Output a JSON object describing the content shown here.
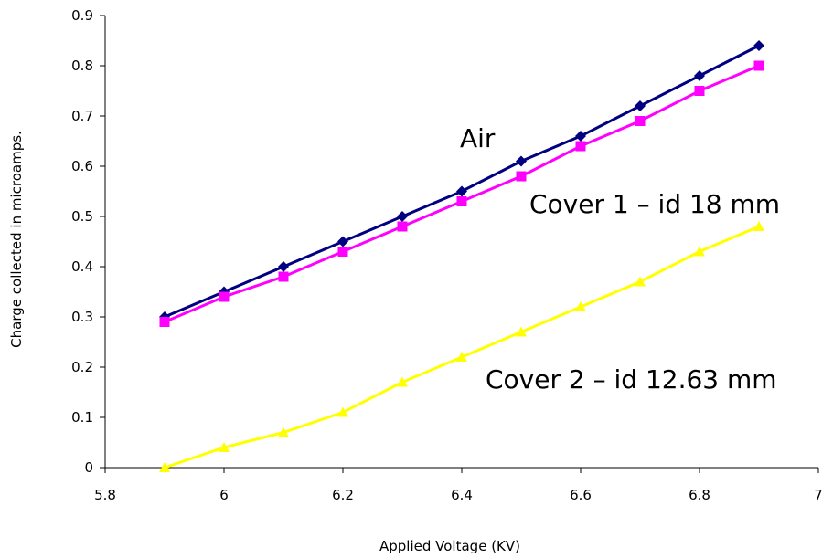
{
  "chart_data": {
    "type": "line",
    "xlabel": "Applied Voltage (KV)",
    "ylabel": "Charge collected in microamps.",
    "xlim": [
      5.8,
      7
    ],
    "ylim": [
      0,
      0.9
    ],
    "x_ticks": [
      "5.8",
      "6",
      "6.2",
      "6.4",
      "6.6",
      "6.8",
      "7"
    ],
    "y_ticks": [
      "0",
      "0.1",
      "0.2",
      "0.3",
      "0.4",
      "0.5",
      "0.6",
      "0.7",
      "0.8",
      "0.9"
    ],
    "grid": false,
    "legend": "none",
    "x": [
      5.9,
      6.0,
      6.1,
      6.2,
      6.3,
      6.4,
      6.5,
      6.6,
      6.7,
      6.8,
      6.9
    ],
    "series": [
      {
        "name": "Air",
        "color": "#000080",
        "marker": "diamond",
        "values": [
          0.3,
          0.35,
          0.4,
          0.45,
          0.5,
          0.55,
          0.61,
          0.66,
          0.72,
          0.78,
          0.84
        ]
      },
      {
        "name": "Cover 1 – id 18 mm",
        "color": "#ff00ff",
        "marker": "square",
        "values": [
          0.29,
          0.34,
          0.38,
          0.43,
          0.48,
          0.53,
          0.58,
          0.64,
          0.69,
          0.75,
          0.8
        ]
      },
      {
        "name": "Cover 2 – id 12.63 mm",
        "color": "#ffff00",
        "marker": "triangle",
        "values": [
          0.0,
          0.04,
          0.07,
          0.11,
          0.17,
          0.22,
          0.27,
          0.32,
          0.37,
          0.43,
          0.48
        ]
      }
    ]
  }
}
